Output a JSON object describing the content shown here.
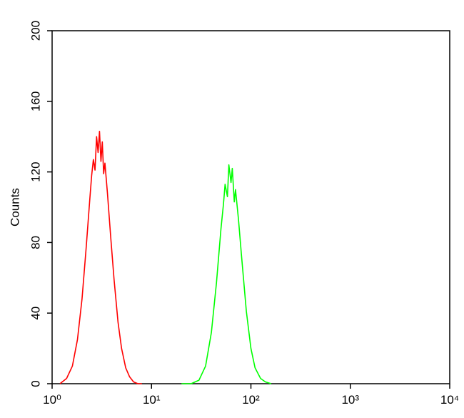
{
  "chart_data": {
    "type": "line",
    "ylabel": "Counts",
    "xscale": "log",
    "xlim": [
      1,
      10000
    ],
    "xticks": [
      {
        "value": 1,
        "label": "10⁰"
      },
      {
        "value": 10,
        "label": "10¹"
      },
      {
        "value": 100,
        "label": "10²"
      },
      {
        "value": 1000,
        "label": "10³"
      },
      {
        "value": 10000,
        "label": "10⁴"
      }
    ],
    "ylim": [
      0,
      200
    ],
    "yticks": [
      0,
      40,
      80,
      120,
      160,
      200
    ],
    "grid": false,
    "series": [
      {
        "color": "#ff0000",
        "x": [
          1.2,
          1.4,
          1.6,
          1.8,
          2.0,
          2.2,
          2.4,
          2.5,
          2.6,
          2.7,
          2.8,
          2.9,
          3.0,
          3.1,
          3.2,
          3.3,
          3.4,
          3.6,
          3.9,
          4.2,
          4.6,
          5.0,
          5.5,
          6.0,
          6.6,
          7.3,
          8.0
        ],
        "values": [
          0,
          3,
          10,
          25,
          48,
          77,
          105,
          118,
          127,
          121,
          140,
          131,
          143,
          126,
          137,
          119,
          125,
          108,
          82,
          59,
          35,
          20,
          9,
          4,
          1,
          0,
          0
        ]
      },
      {
        "color": "#00ff00",
        "x": [
          20,
          25,
          30,
          35,
          40,
          45,
          50,
          53,
          55,
          58,
          60,
          63,
          65,
          68,
          70,
          75,
          80,
          90,
          100,
          110,
          125,
          140,
          160
        ],
        "values": [
          0,
          0,
          2,
          10,
          29,
          57,
          88,
          102,
          113,
          106,
          124,
          114,
          122,
          103,
          110,
          93,
          74,
          41,
          20,
          9,
          3,
          1,
          0
        ]
      }
    ]
  }
}
